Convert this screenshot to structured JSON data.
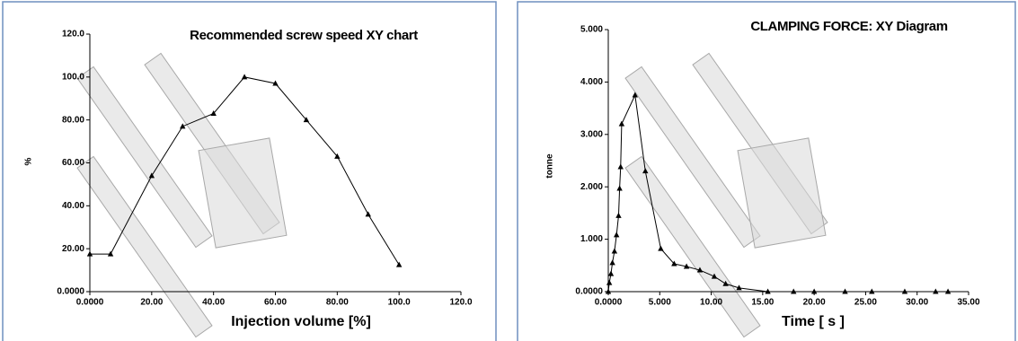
{
  "chart_data": [
    {
      "type": "line",
      "title": "Recommended screw speed XY chart",
      "x_label": "Injection volume [%]",
      "y_label": "%",
      "color": "#000000",
      "marker": "triangle",
      "x": [
        0,
        6.7,
        20,
        30,
        40,
        50,
        60,
        70,
        80,
        90,
        100
      ],
      "values": [
        17.5,
        17.5,
        54,
        77,
        83,
        100,
        97,
        80,
        63,
        36,
        12.5
      ],
      "xlim": [
        0,
        120
      ],
      "ylim": [
        0,
        120
      ],
      "xticks": [
        {
          "value": 0,
          "label": "0.0000"
        },
        {
          "value": 20,
          "label": "20.00"
        },
        {
          "value": 40,
          "label": "40.00"
        },
        {
          "value": 60,
          "label": "60.00"
        },
        {
          "value": 80,
          "label": "80.00"
        },
        {
          "value": 100,
          "label": "100.0"
        },
        {
          "value": 120,
          "label": "120.0"
        }
      ],
      "yticks": [
        {
          "value": 0,
          "label": "0.0000"
        },
        {
          "value": 20,
          "label": "20.00"
        },
        {
          "value": 40,
          "label": "40.00"
        },
        {
          "value": 60,
          "label": "60.00"
        },
        {
          "value": 80,
          "label": "80.00"
        },
        {
          "value": 100,
          "label": "100.0"
        },
        {
          "value": 120,
          "label": "120.0"
        }
      ]
    },
    {
      "type": "line",
      "title": "CLAMPING FORCE: XY Diagram",
      "x_label": "Time [ s ]",
      "y_label": "tonne",
      "color": "#000000",
      "marker": "triangle",
      "x": [
        0,
        0.1,
        0.26,
        0.4,
        0.6,
        0.8,
        1.0,
        1.1,
        1.2,
        1.3,
        2.6,
        3.6,
        5.1,
        6.4,
        7.6,
        8.9,
        10.3,
        11.4,
        12.7,
        15.5,
        18,
        20,
        23,
        25.6,
        28.8,
        31.8,
        33
      ],
      "values": [
        0,
        0.17,
        0.34,
        0.55,
        0.77,
        1.08,
        1.45,
        1.97,
        2.38,
        3.2,
        3.75,
        2.3,
        0.82,
        0.53,
        0.48,
        0.41,
        0.29,
        0.15,
        0.07,
        0,
        0,
        0,
        0,
        0,
        0,
        0,
        0
      ],
      "xlim": [
        0,
        35
      ],
      "ylim": [
        0,
        5
      ],
      "xticks": [
        {
          "value": 0,
          "label": "0.0000"
        },
        {
          "value": 5,
          "label": "5.000"
        },
        {
          "value": 10,
          "label": "10.00"
        },
        {
          "value": 15,
          "label": "15.00"
        },
        {
          "value": 20,
          "label": "20.00"
        },
        {
          "value": 25,
          "label": "25.00"
        },
        {
          "value": 30,
          "label": "30.00"
        },
        {
          "value": 35,
          "label": "35.00"
        }
      ],
      "yticks": [
        {
          "value": 0,
          "label": "0.0000"
        },
        {
          "value": 1,
          "label": "1.000"
        },
        {
          "value": 2,
          "label": "2.000"
        },
        {
          "value": 3,
          "label": "3.000"
        },
        {
          "value": 4,
          "label": "4.000"
        },
        {
          "value": 5,
          "label": "5.000"
        }
      ]
    }
  ]
}
